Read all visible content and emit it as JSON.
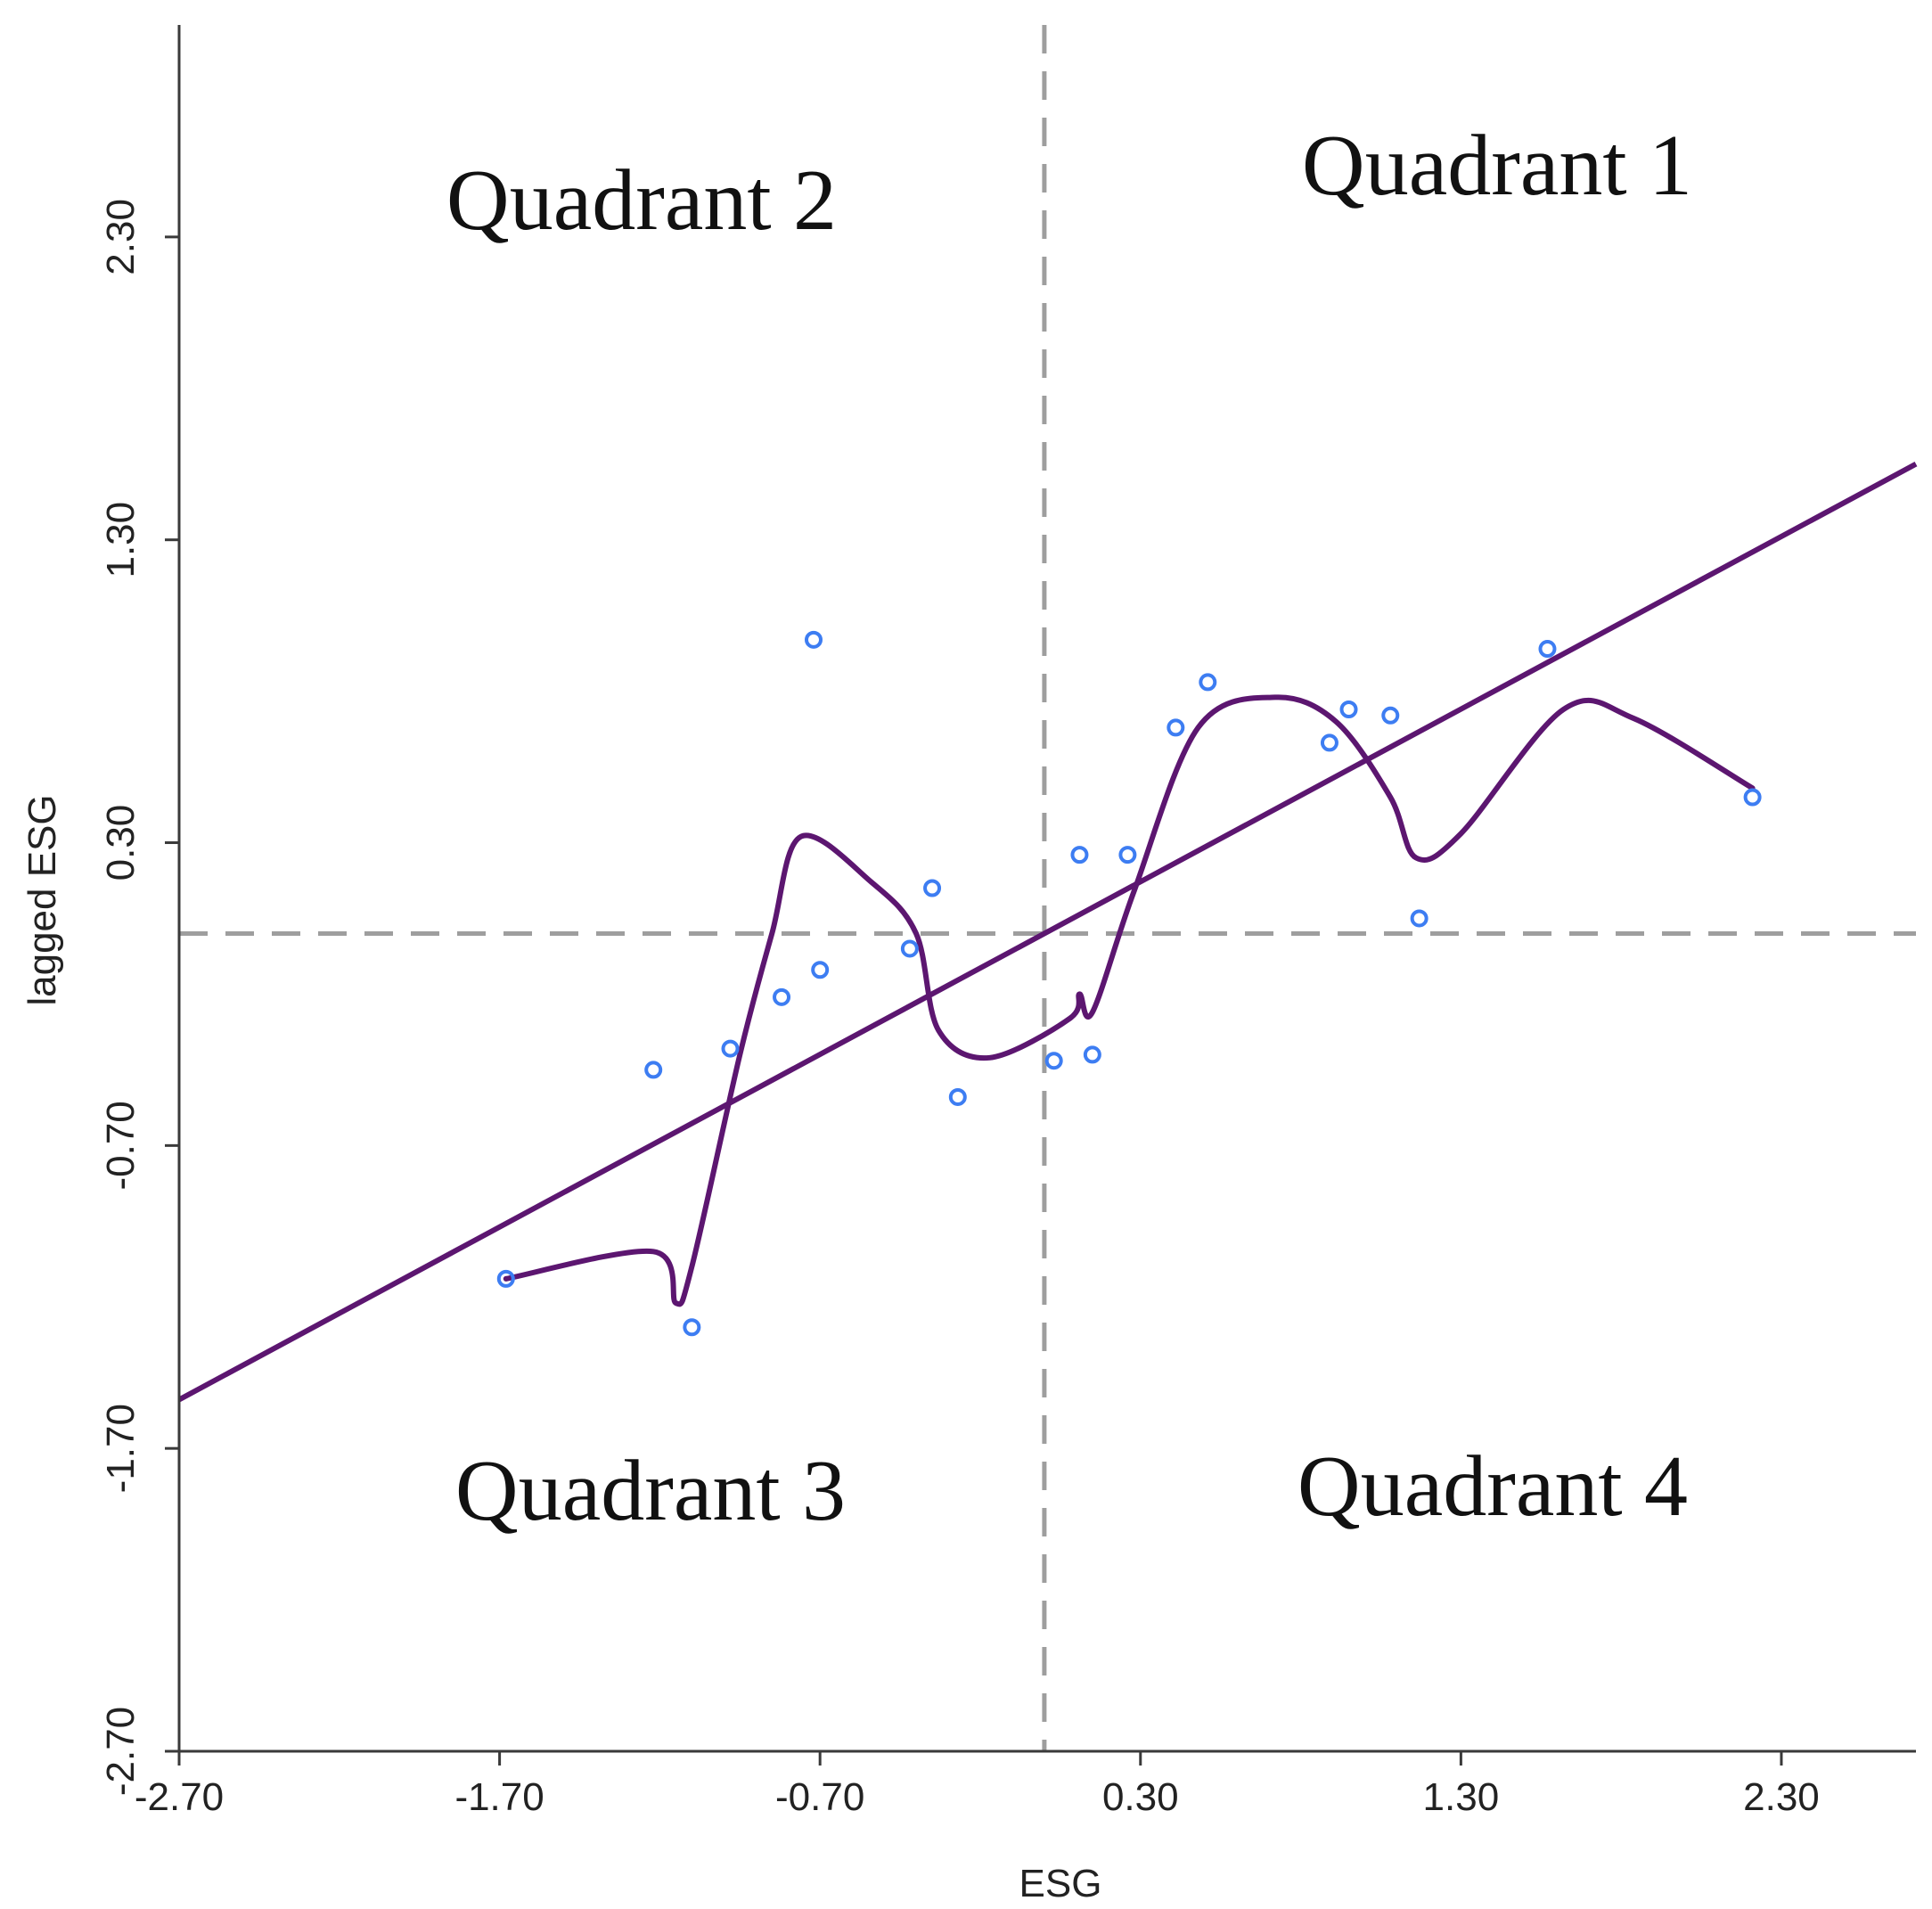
{
  "chart_data": {
    "type": "scatter",
    "xlabel": "ESG",
    "ylabel": "lagged ESG",
    "xlim": [
      -2.7,
      2.72
    ],
    "ylim": [
      -2.7,
      3.0
    ],
    "x_ticks": [
      "-2.70",
      "-1.70",
      "-0.70",
      "0.30",
      "1.30",
      "2.30"
    ],
    "y_ticks": [
      "-2.70",
      "-1.70",
      "-0.70",
      "0.30",
      "1.30",
      "2.30"
    ],
    "reference_lines": {
      "x": 0.0,
      "y": 0.0
    },
    "quadrant_labels": {
      "q1": "Quadrant 1",
      "q2": "Quadrant 2",
      "q3": "Quadrant 3",
      "q4": "Quadrant 4"
    },
    "points": [
      {
        "x": -1.68,
        "y": -1.14
      },
      {
        "x": -1.22,
        "y": -0.45
      },
      {
        "x": -1.1,
        "y": -1.3
      },
      {
        "x": -0.98,
        "y": -0.38
      },
      {
        "x": -0.82,
        "y": -0.21
      },
      {
        "x": -0.72,
        "y": 0.97
      },
      {
        "x": -0.7,
        "y": -0.12
      },
      {
        "x": -0.42,
        "y": -0.05
      },
      {
        "x": -0.35,
        "y": 0.15
      },
      {
        "x": -0.27,
        "y": -0.54
      },
      {
        "x": 0.03,
        "y": -0.42
      },
      {
        "x": 0.11,
        "y": 0.26
      },
      {
        "x": 0.15,
        "y": -0.4
      },
      {
        "x": 0.26,
        "y": 0.26
      },
      {
        "x": 0.41,
        "y": 0.68
      },
      {
        "x": 0.51,
        "y": 0.83
      },
      {
        "x": 0.89,
        "y": 0.63
      },
      {
        "x": 0.95,
        "y": 0.74
      },
      {
        "x": 1.08,
        "y": 0.72
      },
      {
        "x": 1.17,
        "y": 0.05
      },
      {
        "x": 1.57,
        "y": 0.94
      },
      {
        "x": 2.21,
        "y": 0.45
      }
    ],
    "linear_fit": {
      "intercept": 0.0,
      "slope": 0.57
    },
    "smooth_curve": [
      {
        "x": -1.68,
        "y": -1.14
      },
      {
        "x": -1.22,
        "y": -1.05
      },
      {
        "x": -1.15,
        "y": -1.22
      },
      {
        "x": -1.1,
        "y": -1.1
      },
      {
        "x": -0.95,
        "y": -0.4
      },
      {
        "x": -0.85,
        "y": 0.0
      },
      {
        "x": -0.76,
        "y": 0.32
      },
      {
        "x": -0.54,
        "y": 0.17
      },
      {
        "x": -0.4,
        "y": 0.0
      },
      {
        "x": -0.33,
        "y": -0.32
      },
      {
        "x": -0.17,
        "y": -0.41
      },
      {
        "x": 0.08,
        "y": -0.28
      },
      {
        "x": 0.11,
        "y": -0.2
      },
      {
        "x": 0.15,
        "y": -0.26
      },
      {
        "x": 0.28,
        "y": 0.14
      },
      {
        "x": 0.48,
        "y": 0.68
      },
      {
        "x": 0.72,
        "y": 0.78
      },
      {
        "x": 0.91,
        "y": 0.7
      },
      {
        "x": 1.08,
        "y": 0.45
      },
      {
        "x": 1.16,
        "y": 0.25
      },
      {
        "x": 1.3,
        "y": 0.33
      },
      {
        "x": 1.62,
        "y": 0.74
      },
      {
        "x": 1.84,
        "y": 0.71
      },
      {
        "x": 2.21,
        "y": 0.48
      }
    ],
    "colors": {
      "points": "#3d7df2",
      "fit_line": "#5c1670",
      "reference_lines": "#9e9e9e"
    },
    "grid": false
  }
}
